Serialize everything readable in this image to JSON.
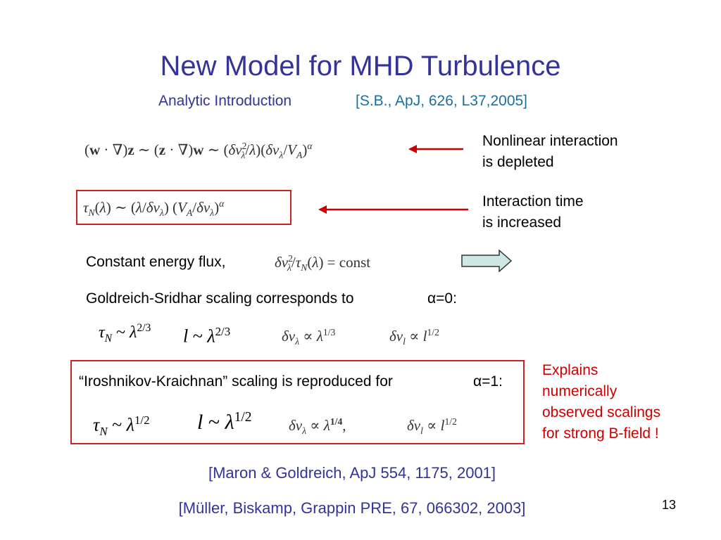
{
  "slide": {
    "title": "New Model for MHD Turbulence",
    "subtitle": "Analytic Introduction",
    "subtitle_ref": "[S.B., ApJ, 626, L37,2005]",
    "eq1": "(w · ∇)z ∼ (z · ∇)w ∼ (δv²_λ/λ)(δv_λ/V_A)^α",
    "eq1_note": [
      "Nonlinear interaction",
      "is depleted"
    ],
    "eq2": "τ_N(λ) ∼ (λ/δv_λ) (V_A/δv_λ)^α",
    "eq2_note": [
      "Interaction time",
      "is increased"
    ],
    "flux_label": "Constant energy flux,",
    "flux_eq": "δv²_λ/τ_N(λ) = const",
    "gs_text": "Goldreich-Sridhar scaling corresponds to",
    "gs_alpha": "α=0:",
    "ik_text": "“Iroshnikov-Kraichnan” scaling is reproduced for",
    "ik_alpha": "α=1:",
    "explains": [
      "Explains",
      "numerically",
      "observed scalings",
      "for strong B-field !"
    ],
    "ref1": "[Maron & Goldreich, ApJ 554, 1175, 2001]",
    "ref2": "[Müller, Biskamp, Grappin PRE, 67, 066302, 2003]",
    "page_number": "13",
    "colors": {
      "title": "#333399",
      "ref": "#1a6fa0",
      "accent_red": "#cc0000",
      "arrow_fill": "#cde7e4"
    }
  }
}
